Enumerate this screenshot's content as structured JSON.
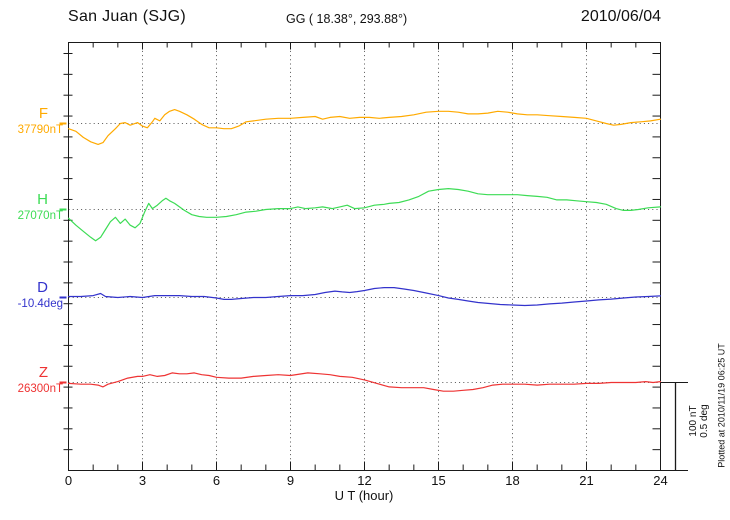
{
  "header": {
    "station": "San Juan (SJG)",
    "coords": "GG ( 18.38°, 293.88°)",
    "date": "2010/06/04"
  },
  "footer": {
    "plotted_at": "Plotted at 2010/11/19 06:25 UT"
  },
  "chart_data": {
    "type": "line",
    "title": "San Juan (SJG) magnetogram 2010/06/04",
    "xlabel": "U T (hour)",
    "x_range": [
      0,
      24
    ],
    "x_ticks": [
      0,
      3,
      6,
      9,
      12,
      15,
      18,
      21,
      24
    ],
    "grid": "dotted vertical lines every 3 hours, dotted baseline per component",
    "scale_bar": {
      "label_nT": "100 nT",
      "label_deg": "0.5 deg",
      "span_nT": 100,
      "span_deg": 0.5
    },
    "series": [
      {
        "name": "F",
        "baseline_label": "37790nT",
        "baseline_value": 37790,
        "unit": "nT",
        "color": "#FFAA00",
        "points": [
          [
            0,
            -6
          ],
          [
            0.3,
            -9
          ],
          [
            0.6,
            -16
          ],
          [
            0.9,
            -21
          ],
          [
            1.2,
            -24
          ],
          [
            1.4,
            -22
          ],
          [
            1.6,
            -14
          ],
          [
            1.9,
            -6
          ],
          [
            2.1,
            0
          ],
          [
            2.3,
            1
          ],
          [
            2.5,
            -2
          ],
          [
            2.8,
            1
          ],
          [
            3.0,
            -3
          ],
          [
            3.2,
            -5
          ],
          [
            3.4,
            2
          ],
          [
            3.5,
            6
          ],
          [
            3.7,
            3
          ],
          [
            3.9,
            10
          ],
          [
            4.1,
            14
          ],
          [
            4.3,
            16
          ],
          [
            4.5,
            14
          ],
          [
            4.8,
            10
          ],
          [
            5.1,
            5
          ],
          [
            5.4,
            -1
          ],
          [
            5.7,
            -5
          ],
          [
            6.0,
            -5
          ],
          [
            6.3,
            -6
          ],
          [
            6.6,
            -6
          ],
          [
            6.9,
            -3
          ],
          [
            7.2,
            2
          ],
          [
            7.5,
            3
          ],
          [
            8.0,
            5
          ],
          [
            8.5,
            6
          ],
          [
            9.0,
            6
          ],
          [
            9.5,
            7
          ],
          [
            10.0,
            8
          ],
          [
            10.3,
            5
          ],
          [
            10.6,
            7
          ],
          [
            11.0,
            8
          ],
          [
            11.4,
            6
          ],
          [
            11.8,
            7
          ],
          [
            12.2,
            7
          ],
          [
            12.6,
            6
          ],
          [
            13.0,
            7
          ],
          [
            13.5,
            8
          ],
          [
            14.0,
            10
          ],
          [
            14.5,
            13
          ],
          [
            15.0,
            14
          ],
          [
            15.4,
            14
          ],
          [
            15.8,
            13
          ],
          [
            16.2,
            11
          ],
          [
            16.6,
            11
          ],
          [
            17.0,
            12
          ],
          [
            17.4,
            14
          ],
          [
            17.8,
            13
          ],
          [
            18.2,
            11
          ],
          [
            18.6,
            10
          ],
          [
            19.0,
            10
          ],
          [
            19.5,
            9
          ],
          [
            20.0,
            8
          ],
          [
            20.5,
            7
          ],
          [
            21.0,
            6
          ],
          [
            21.4,
            3
          ],
          [
            21.8,
            0
          ],
          [
            22.1,
            -2
          ],
          [
            22.4,
            -1
          ],
          [
            22.8,
            1
          ],
          [
            23.2,
            2
          ],
          [
            23.6,
            3
          ],
          [
            24.0,
            5
          ]
        ]
      },
      {
        "name": "H",
        "baseline_label": "27070nT",
        "baseline_value": 27070,
        "unit": "nT",
        "color": "#3DDC55",
        "points": [
          [
            0,
            -10
          ],
          [
            0.3,
            -18
          ],
          [
            0.6,
            -25
          ],
          [
            0.9,
            -32
          ],
          [
            1.1,
            -36
          ],
          [
            1.3,
            -32
          ],
          [
            1.5,
            -23
          ],
          [
            1.7,
            -14
          ],
          [
            1.9,
            -9
          ],
          [
            2.1,
            -16
          ],
          [
            2.3,
            -11
          ],
          [
            2.5,
            -18
          ],
          [
            2.7,
            -21
          ],
          [
            2.9,
            -16
          ],
          [
            3.1,
            -2
          ],
          [
            3.25,
            7
          ],
          [
            3.4,
            1
          ],
          [
            3.6,
            5
          ],
          [
            3.8,
            10
          ],
          [
            3.95,
            13
          ],
          [
            4.1,
            10
          ],
          [
            4.3,
            7
          ],
          [
            4.5,
            3
          ],
          [
            4.7,
            -1
          ],
          [
            5.0,
            -6
          ],
          [
            5.3,
            -8
          ],
          [
            5.6,
            -9
          ],
          [
            6.0,
            -9
          ],
          [
            6.4,
            -8
          ],
          [
            6.8,
            -6
          ],
          [
            7.2,
            -3
          ],
          [
            7.6,
            -2
          ],
          [
            8.0,
            0
          ],
          [
            8.5,
            1
          ],
          [
            9.0,
            1
          ],
          [
            9.3,
            3
          ],
          [
            9.6,
            1
          ],
          [
            10.0,
            2
          ],
          [
            10.3,
            3
          ],
          [
            10.7,
            1
          ],
          [
            11.0,
            3
          ],
          [
            11.3,
            5
          ],
          [
            11.6,
            1
          ],
          [
            12.0,
            2
          ],
          [
            12.4,
            5
          ],
          [
            12.8,
            6
          ],
          [
            13.0,
            7
          ],
          [
            13.4,
            8
          ],
          [
            13.8,
            11
          ],
          [
            14.2,
            15
          ],
          [
            14.6,
            21
          ],
          [
            15.0,
            23
          ],
          [
            15.4,
            24
          ],
          [
            15.8,
            23
          ],
          [
            16.2,
            21
          ],
          [
            16.6,
            18
          ],
          [
            17.0,
            17
          ],
          [
            17.4,
            17
          ],
          [
            17.8,
            17
          ],
          [
            18.2,
            17
          ],
          [
            18.6,
            16
          ],
          [
            19.0,
            15
          ],
          [
            19.4,
            14
          ],
          [
            19.8,
            11
          ],
          [
            20.2,
            11
          ],
          [
            20.6,
            10
          ],
          [
            21.0,
            9
          ],
          [
            21.4,
            8
          ],
          [
            21.8,
            6
          ],
          [
            22.2,
            1
          ],
          [
            22.5,
            -1
          ],
          [
            22.8,
            -1
          ],
          [
            23.1,
            0
          ],
          [
            23.5,
            2
          ],
          [
            24.0,
            3
          ]
        ]
      },
      {
        "name": "D",
        "baseline_label": "-10.4deg",
        "baseline_value": -10.4,
        "unit": "deg",
        "color": "#3333CC",
        "points": [
          [
            0,
            0.006
          ],
          [
            0.5,
            0.006
          ],
          [
            1.0,
            0.011
          ],
          [
            1.3,
            0.023
          ],
          [
            1.5,
            0.006
          ],
          [
            2.0,
            0
          ],
          [
            2.5,
            0.006
          ],
          [
            3.0,
            0
          ],
          [
            3.5,
            0.011
          ],
          [
            4.0,
            0.011
          ],
          [
            4.5,
            0.011
          ],
          [
            5.0,
            0.006
          ],
          [
            5.5,
            0.006
          ],
          [
            6.0,
            -0.003
          ],
          [
            6.3,
            -0.011
          ],
          [
            6.6,
            -0.011
          ],
          [
            7.0,
            -0.006
          ],
          [
            7.5,
            0
          ],
          [
            8.0,
            0
          ],
          [
            8.5,
            0.006
          ],
          [
            9.0,
            0.011
          ],
          [
            9.5,
            0.011
          ],
          [
            10.0,
            0.017
          ],
          [
            10.4,
            0.029
          ],
          [
            10.8,
            0.037
          ],
          [
            11.1,
            0.032
          ],
          [
            11.4,
            0.029
          ],
          [
            11.7,
            0.034
          ],
          [
            12.0,
            0.04
          ],
          [
            12.4,
            0.052
          ],
          [
            12.8,
            0.057
          ],
          [
            13.2,
            0.057
          ],
          [
            13.6,
            0.049
          ],
          [
            14.0,
            0.04
          ],
          [
            14.5,
            0.026
          ],
          [
            15.0,
            0.011
          ],
          [
            15.4,
            -0.003
          ],
          [
            15.8,
            -0.011
          ],
          [
            16.2,
            -0.02
          ],
          [
            16.6,
            -0.029
          ],
          [
            17.0,
            -0.034
          ],
          [
            17.5,
            -0.04
          ],
          [
            18.0,
            -0.043
          ],
          [
            18.5,
            -0.046
          ],
          [
            19.0,
            -0.043
          ],
          [
            19.5,
            -0.037
          ],
          [
            20.0,
            -0.032
          ],
          [
            20.5,
            -0.026
          ],
          [
            21.0,
            -0.02
          ],
          [
            21.5,
            -0.014
          ],
          [
            22.0,
            -0.009
          ],
          [
            22.5,
            -0.003
          ],
          [
            23.0,
            0.003
          ],
          [
            23.5,
            0.006
          ],
          [
            24.0,
            0.009
          ]
        ]
      },
      {
        "name": "Z",
        "baseline_label": "26300nT",
        "baseline_value": 26300,
        "unit": "nT",
        "color": "#EE3333",
        "points": [
          [
            0,
            -1
          ],
          [
            0.5,
            -2
          ],
          [
            0.9,
            -2
          ],
          [
            1.2,
            -3
          ],
          [
            1.4,
            -5
          ],
          [
            1.6,
            -2
          ],
          [
            2.0,
            1
          ],
          [
            2.4,
            5
          ],
          [
            2.8,
            7
          ],
          [
            3.0,
            7
          ],
          [
            3.3,
            9
          ],
          [
            3.6,
            7
          ],
          [
            3.9,
            8
          ],
          [
            4.2,
            11
          ],
          [
            4.5,
            10
          ],
          [
            4.8,
            10
          ],
          [
            5.1,
            11
          ],
          [
            5.4,
            9
          ],
          [
            5.7,
            8
          ],
          [
            6.0,
            6
          ],
          [
            6.5,
            5
          ],
          [
            7.0,
            5
          ],
          [
            7.5,
            7
          ],
          [
            8.0,
            8
          ],
          [
            8.5,
            9
          ],
          [
            9.0,
            8
          ],
          [
            9.7,
            11
          ],
          [
            10.2,
            10
          ],
          [
            10.6,
            9
          ],
          [
            11.0,
            7
          ],
          [
            11.5,
            6
          ],
          [
            12.0,
            3
          ],
          [
            12.5,
            -1
          ],
          [
            13.0,
            -5
          ],
          [
            13.5,
            -6
          ],
          [
            14.0,
            -6
          ],
          [
            14.4,
            -6
          ],
          [
            14.8,
            -8
          ],
          [
            15.2,
            -10
          ],
          [
            15.6,
            -10
          ],
          [
            16.0,
            -9
          ],
          [
            16.4,
            -8
          ],
          [
            16.8,
            -6
          ],
          [
            17.2,
            -3
          ],
          [
            17.6,
            -2
          ],
          [
            18.0,
            -2
          ],
          [
            18.5,
            -2
          ],
          [
            19.0,
            -3
          ],
          [
            19.5,
            -2
          ],
          [
            20.0,
            -2
          ],
          [
            20.5,
            -2
          ],
          [
            21.0,
            -1
          ],
          [
            21.5,
            -1
          ],
          [
            22.0,
            0
          ],
          [
            22.5,
            0
          ],
          [
            23.0,
            0
          ],
          [
            23.4,
            1
          ],
          [
            23.7,
            0
          ],
          [
            24.0,
            1
          ]
        ]
      }
    ]
  }
}
